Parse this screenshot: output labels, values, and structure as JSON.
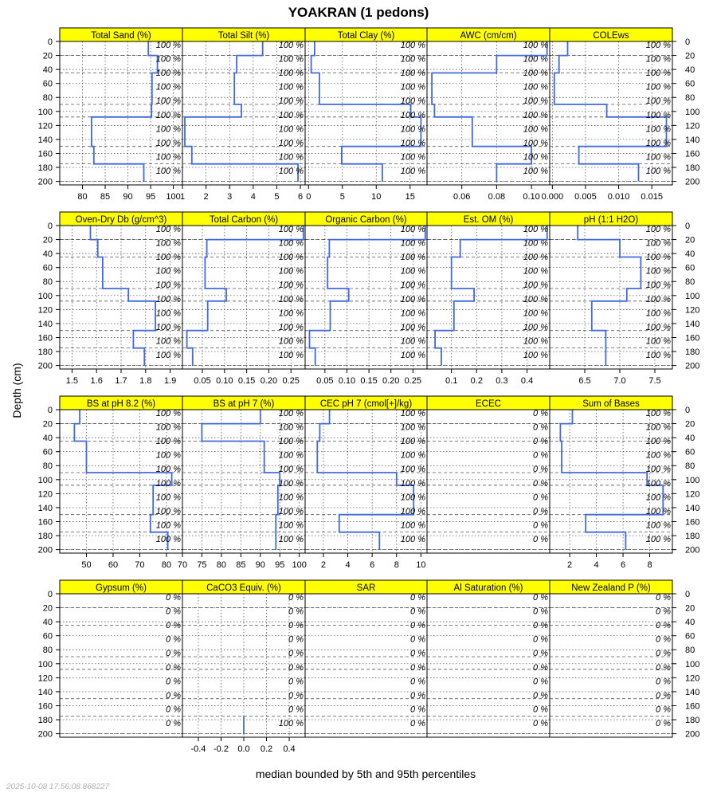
{
  "chart_data": {
    "type": "line",
    "title": "YOAKRAN (1 pedons)",
    "ylabel": "Depth (cm)",
    "xlabel": "median bounded by 5th and 95th percentiles",
    "timestamp": "2025-10-08 17:56:08.868227",
    "depth_ticks": [
      0,
      20,
      40,
      60,
      80,
      100,
      120,
      140,
      160,
      180,
      200
    ],
    "depth_range": [
      0,
      205
    ],
    "line_color": "#4169E1",
    "strip_color": "#FFFF00",
    "depth_breaks": [
      0,
      20,
      45,
      90,
      108,
      150,
      175,
      200
    ],
    "coverage_depths": [
      0,
      20,
      40,
      60,
      80,
      100,
      120,
      140,
      160,
      180
    ],
    "coverage_labels": {
      "full": "100 %",
      "none": "0 %",
      "last_only": "100 %"
    },
    "panels": [
      {
        "name": "Total Sand (%)",
        "xlim": [
          75,
          102
        ],
        "xticks": [
          80,
          85,
          90,
          95,
          100
        ],
        "xtick_labels": [
          "80",
          "85",
          "90",
          "95",
          "100"
        ],
        "values": [
          94.5,
          96.5,
          95.3,
          95.2,
          82.0,
          82.5,
          93.5
        ],
        "coverage": "full"
      },
      {
        "name": "Total Silt (%)",
        "xlim": [
          1,
          6.2
        ],
        "xticks": [
          1,
          2,
          3,
          4,
          5,
          6
        ],
        "xtick_labels": [
          "1",
          "2",
          "3",
          "4",
          "5",
          "6"
        ],
        "values": [
          4.4,
          3.3,
          3.2,
          3.5,
          1.1,
          1.4,
          5.9
        ],
        "coverage": "full"
      },
      {
        "name": "Total Clay (%)",
        "xlim": [
          -0.5,
          17.5
        ],
        "xticks": [
          0,
          5,
          10,
          15
        ],
        "xtick_labels": [
          "0",
          "5",
          "10",
          "15"
        ],
        "values": [
          0.9,
          0.4,
          1.6,
          15.1,
          16.6,
          4.9,
          10.9
        ],
        "coverage": "full"
      },
      {
        "name": "AWC (cm/cm)",
        "xlim": [
          0.04,
          0.1105
        ],
        "xticks": [
          0.06,
          0.08,
          0.1
        ],
        "xtick_labels": [
          "0.06",
          "0.08",
          "0.10"
        ],
        "values": [
          0.109,
          0.08,
          0.0428,
          0.0443,
          0.066,
          0.1,
          0.08
        ],
        "coverage": "full"
      },
      {
        "name": "COLEws",
        "xlim": [
          -0.0004,
          0.0181
        ],
        "xticks": [
          0.0,
          0.005,
          0.01,
          0.015
        ],
        "xtick_labels": [
          "0.000",
          "0.005",
          "0.010",
          "0.015"
        ],
        "values": [
          0.0023,
          0.001,
          0.0003,
          0.0082,
          0.0172,
          0.004,
          0.013
        ],
        "coverage": "full"
      },
      {
        "name": "Oven-Dry Db (g/cm^3)",
        "xlim": [
          1.45,
          1.95
        ],
        "xticks": [
          1.5,
          1.6,
          1.7,
          1.8,
          1.9
        ],
        "xtick_labels": [
          "1.5",
          "1.6",
          "1.7",
          "1.8",
          "1.9"
        ],
        "values": [
          1.575,
          1.605,
          1.625,
          1.73,
          1.84,
          1.75,
          1.795
        ],
        "coverage": "full"
      },
      {
        "name": "Total Carbon (%)",
        "xlim": [
          0.005,
          0.282
        ],
        "xticks": [
          0.05,
          0.1,
          0.15,
          0.2,
          0.25
        ],
        "xtick_labels": [
          "0.05",
          "0.10",
          "0.15",
          "0.20",
          "0.25"
        ],
        "values": [
          0.278,
          0.06,
          0.056,
          0.104,
          0.062,
          0.015,
          0.028
        ],
        "coverage": "full"
      },
      {
        "name": "Organic Carbon (%)",
        "xlim": [
          0.005,
          0.282
        ],
        "xticks": [
          0.05,
          0.1,
          0.15,
          0.2,
          0.25
        ],
        "xtick_labels": [
          "0.05",
          "0.10",
          "0.15",
          "0.20",
          "0.25"
        ],
        "values": [
          0.278,
          0.06,
          0.056,
          0.104,
          0.062,
          0.015,
          0.028
        ],
        "coverage": "full"
      },
      {
        "name": "Est. OM (%)",
        "xlim": [
          0.003,
          0.49
        ],
        "xticks": [
          0.1,
          0.2,
          0.3,
          0.4
        ],
        "xtick_labels": [
          "0.1",
          "0.2",
          "0.3",
          "0.4"
        ],
        "values": [
          0.48,
          0.135,
          0.1,
          0.19,
          0.11,
          0.035,
          0.06
        ],
        "coverage": "full"
      },
      {
        "name": "pH (1:1 H2O)",
        "xlim": [
          6.0,
          7.75
        ],
        "xticks": [
          6.5,
          7.0,
          7.5
        ],
        "xtick_labels": [
          "6.5",
          "7.0",
          "7.5"
        ],
        "values": [
          6.4,
          7.0,
          7.3,
          7.1,
          6.6,
          6.8,
          6.8
        ],
        "coverage": "full"
      },
      {
        "name": "BS at pH 8.2 (%)",
        "xlim": [
          40,
          86
        ],
        "xticks": [
          50,
          60,
          70,
          80
        ],
        "xtick_labels": [
          "50",
          "60",
          "70",
          "80"
        ],
        "values": [
          47.5,
          45.5,
          50,
          82,
          75,
          74,
          80.5
        ],
        "coverage": "full"
      },
      {
        "name": "BS at pH 7 (%)",
        "xlim": [
          70,
          101.5
        ],
        "xticks": [
          70,
          75,
          80,
          85,
          90,
          95,
          100
        ],
        "xtick_labels": [
          "70",
          "75",
          "80",
          "85",
          "90",
          "95",
          "100"
        ],
        "values": [
          90,
          75,
          91,
          95,
          94.5,
          94,
          94
        ],
        "coverage": "full"
      },
      {
        "name": "CEC pH 7 (cmol[+]/kg)",
        "xlim": [
          0.5,
          10.5
        ],
        "xticks": [
          2,
          4,
          6,
          8,
          10
        ],
        "xtick_labels": [
          "2",
          "4",
          "6",
          "8",
          "10"
        ],
        "values": [
          2.5,
          1.7,
          1.5,
          8.0,
          9.4,
          3.3,
          6.6
        ],
        "coverage": "full"
      },
      {
        "name": "ECEC",
        "xlim": [
          0,
          1
        ],
        "xticks": [],
        "xtick_labels": [],
        "values": [],
        "coverage": "none"
      },
      {
        "name": "Sum of Bases",
        "xlim": [
          0.5,
          9.7
        ],
        "xticks": [
          2,
          4,
          6,
          8
        ],
        "xtick_labels": [
          "2",
          "4",
          "6",
          "8"
        ],
        "values": [
          2.2,
          1.3,
          1.4,
          7.8,
          9.0,
          3.2,
          6.2
        ],
        "coverage": "full"
      },
      {
        "name": "Gypsum (%)",
        "xlim": [
          0,
          1
        ],
        "xticks": [],
        "xtick_labels": [],
        "values": [],
        "coverage": "none"
      },
      {
        "name": "CaCO3 Equiv. (%)",
        "xlim": [
          -0.54,
          0.54
        ],
        "xticks": [
          -0.4,
          -0.2,
          0.0,
          0.2,
          0.4
        ],
        "xtick_labels": [
          "-0.4",
          "-0.2",
          "0.0",
          "0.2",
          "0.4"
        ],
        "segment": {
          "x": 0.0,
          "y0": 175,
          "y1": 200
        },
        "values": [],
        "coverage": "last_only"
      },
      {
        "name": "SAR",
        "xlim": [
          0,
          1
        ],
        "xticks": [],
        "xtick_labels": [],
        "values": [],
        "coverage": "none"
      },
      {
        "name": "Al Saturation (%)",
        "xlim": [
          0,
          1
        ],
        "xticks": [],
        "xtick_labels": [],
        "values": [],
        "coverage": "none"
      },
      {
        "name": "New Zealand P (%)",
        "xlim": [
          0,
          1
        ],
        "xticks": [],
        "xtick_labels": [],
        "values": [],
        "coverage": "none"
      }
    ]
  }
}
